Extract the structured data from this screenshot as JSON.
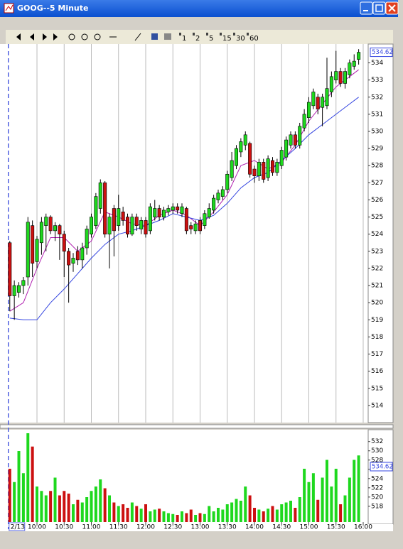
{
  "window": {
    "title": "GOOG--5 Minute",
    "toolbar_periods": [
      "1",
      "2",
      "5",
      "15",
      "30",
      "60"
    ]
  },
  "chart_data": {
    "type": "candlestick",
    "date_label": "2/13",
    "last_price": 534.62,
    "up_color": "#1ed81e",
    "down_color": "#cc1010",
    "x": [
      570,
      575,
      580,
      585,
      590,
      595,
      600,
      605,
      610,
      615,
      620,
      625,
      630,
      635,
      640,
      645,
      650,
      655,
      660,
      665,
      670,
      675,
      680,
      685,
      690,
      695,
      700,
      705,
      710,
      715,
      720,
      725,
      730,
      735,
      740,
      745,
      750,
      755,
      760,
      765,
      770,
      775,
      780,
      785,
      790,
      795,
      800,
      805,
      810,
      815,
      820,
      825,
      830,
      835,
      840,
      845,
      850,
      855,
      860,
      865,
      870,
      875,
      880,
      885,
      890,
      895,
      900,
      905,
      910,
      915,
      920,
      925,
      930,
      935,
      940,
      945,
      950,
      955
    ],
    "open": [
      523.5,
      520.4,
      520.6,
      521.0,
      521.5,
      524.5,
      522.4,
      523.5,
      524.5,
      525.0,
      524.2,
      524.5,
      524.0,
      523.0,
      522.3,
      523.0,
      522.5,
      523.2,
      524.0,
      524.5,
      525.5,
      527.0,
      524.0,
      525.5,
      524.5,
      525.3,
      525.0,
      524.0,
      525.0,
      524.3,
      524.8,
      524.2,
      525.0,
      525.5,
      525.0,
      525.3,
      525.4,
      525.6,
      525.2,
      525.5,
      524.5,
      524.2,
      524.8,
      524.5,
      525.0,
      525.4,
      526.0,
      526.2,
      526.6,
      527.3,
      528.0,
      528.8,
      529.2,
      529.3,
      527.8,
      527.4,
      528.2,
      527.3,
      528.3,
      527.6,
      528.0,
      528.5,
      529.2,
      529.8,
      529.2,
      530.2,
      530.8,
      531.5,
      532.0,
      531.4,
      531.5,
      532.3,
      533.0,
      533.5,
      532.8,
      533.3,
      533.8,
      534.2
    ],
    "high": [
      523.6,
      521.3,
      521.2,
      521.5,
      525.0,
      524.8,
      523.9,
      525.0,
      525.2,
      525.1,
      524.7,
      524.6,
      524.2,
      523.2,
      522.9,
      523.3,
      523.5,
      524.5,
      525.2,
      526.4,
      527.2,
      527.1,
      525.2,
      525.7,
      526.3,
      525.6,
      525.2,
      525.2,
      525.2,
      525.0,
      525.0,
      525.8,
      526.0,
      525.7,
      525.6,
      525.7,
      525.8,
      525.8,
      525.8,
      525.6,
      524.7,
      524.8,
      525.0,
      525.4,
      525.8,
      526.3,
      526.6,
      526.8,
      527.7,
      528.8,
      529.2,
      529.6,
      530.0,
      529.4,
      528.0,
      528.4,
      528.4,
      528.6,
      528.5,
      528.4,
      529.1,
      529.7,
      530.0,
      530.0,
      530.5,
      531.3,
      532.0,
      532.5,
      532.2,
      532.2,
      534.3,
      533.5,
      534.7,
      533.7,
      533.7,
      534.2,
      534.5,
      534.8
    ],
    "low": [
      519.5,
      519.0,
      520.3,
      520.5,
      521.0,
      521.5,
      522.0,
      522.8,
      523.0,
      524.0,
      523.6,
      522.5,
      521.5,
      520.0,
      521.8,
      522.2,
      522.0,
      522.8,
      523.8,
      524.3,
      525.2,
      523.8,
      522.0,
      522.7,
      524.2,
      524.5,
      523.8,
      523.9,
      524.2,
      524.0,
      523.8,
      524.0,
      524.8,
      524.8,
      524.8,
      525.1,
      525.2,
      525.2,
      525.0,
      524.0,
      524.0,
      524.0,
      524.0,
      524.3,
      524.9,
      525.2,
      525.8,
      526.0,
      526.4,
      527.1,
      527.8,
      528.5,
      528.9,
      527.3,
      527.0,
      527.1,
      527.0,
      527.1,
      527.4,
      527.4,
      527.8,
      528.3,
      529.0,
      529.0,
      529.0,
      530.0,
      530.5,
      531.3,
      531.0,
      530.3,
      531.3,
      532.0,
      532.8,
      532.6,
      532.5,
      533.1,
      533.6,
      533.9
    ],
    "close": [
      520.4,
      521.0,
      521.0,
      521.3,
      524.7,
      522.3,
      523.7,
      524.7,
      525.0,
      524.2,
      524.5,
      524.0,
      523.0,
      522.2,
      522.6,
      522.5,
      523.2,
      524.3,
      525.0,
      526.2,
      527.0,
      524.0,
      525.0,
      524.2,
      525.5,
      524.8,
      524.0,
      525.0,
      524.5,
      524.8,
      524.0,
      525.6,
      525.5,
      525.0,
      525.4,
      525.5,
      525.6,
      525.4,
      525.6,
      524.2,
      524.3,
      524.6,
      524.2,
      525.2,
      525.5,
      526.1,
      526.4,
      526.6,
      527.5,
      528.3,
      529.0,
      529.4,
      529.8,
      527.5,
      527.4,
      528.2,
      527.2,
      528.4,
      527.6,
      528.2,
      528.9,
      529.5,
      529.8,
      529.2,
      530.3,
      531.0,
      531.7,
      532.3,
      531.3,
      532.0,
      532.5,
      533.2,
      533.5,
      532.8,
      533.5,
      534.0,
      534.1,
      534.62
    ],
    "volume": [
      60,
      45,
      80,
      55,
      100,
      85,
      40,
      35,
      30,
      35,
      50,
      30,
      35,
      32,
      20,
      25,
      22,
      28,
      35,
      40,
      48,
      38,
      30,
      22,
      18,
      20,
      16,
      22,
      18,
      15,
      20,
      12,
      14,
      15,
      12,
      10,
      9,
      8,
      12,
      10,
      14,
      8,
      10,
      9,
      18,
      12,
      16,
      14,
      20,
      22,
      26,
      24,
      40,
      30,
      16,
      14,
      12,
      15,
      18,
      14,
      20,
      22,
      24,
      16,
      28,
      60,
      45,
      55,
      25,
      50,
      70,
      40,
      60,
      20,
      30,
      50,
      70,
      75
    ],
    "vlim": [
      0,
      100
    ],
    "lines": [
      {
        "color": "#b020b0",
        "x": [
          570,
          585,
          600,
          615,
          630,
          645,
          660,
          675,
          690,
          705,
          720,
          735,
          750,
          765,
          780,
          795,
          810,
          825,
          840,
          855,
          870,
          885,
          900,
          915,
          930,
          945,
          955
        ],
        "values": [
          519.5,
          520.0,
          522.0,
          523.8,
          523.8,
          523.0,
          523.6,
          525.3,
          525.0,
          524.6,
          524.5,
          525.1,
          525.4,
          525.1,
          524.5,
          525.3,
          526.3,
          528.0,
          528.3,
          527.8,
          528.2,
          529.2,
          530.6,
          531.6,
          532.6,
          533.2,
          533.6
        ]
      },
      {
        "color": "#3344e0",
        "x": [
          570,
          585,
          600,
          615,
          630,
          645,
          660,
          675,
          690,
          705,
          720,
          735,
          750,
          765,
          780,
          795,
          810,
          825,
          840,
          855,
          870,
          885,
          900,
          915,
          930,
          945,
          955
        ],
        "values": [
          519.1,
          519.0,
          519.0,
          520.0,
          520.8,
          521.7,
          522.6,
          523.4,
          524.0,
          524.2,
          524.5,
          524.8,
          525.2,
          525.0,
          524.8,
          525.1,
          525.8,
          526.7,
          527.3,
          527.6,
          528.3,
          529.0,
          529.8,
          530.4,
          531.0,
          531.6,
          532.0
        ]
      }
    ],
    "xlim": [
      559.2,
      965.5
    ],
    "xticks": [
      {
        "value": 600,
        "label": "10:00"
      },
      {
        "value": 630,
        "label": "10:30"
      },
      {
        "value": 660,
        "label": "11:00"
      },
      {
        "value": 690,
        "label": "11:30"
      },
      {
        "value": 720,
        "label": "12:00"
      },
      {
        "value": 750,
        "label": "12:30"
      },
      {
        "value": 780,
        "label": "13:00"
      },
      {
        "value": 810,
        "label": "13:30"
      },
      {
        "value": 840,
        "label": "14:00"
      },
      {
        "value": 870,
        "label": "14:30"
      },
      {
        "value": 900,
        "label": "15:00"
      },
      {
        "value": 930,
        "label": "15:30"
      },
      {
        "value": 960,
        "label": "16:00"
      }
    ],
    "ylim": [
      513,
      535.1
    ],
    "yticks": [
      514,
      515,
      516,
      517,
      518,
      519,
      520,
      521,
      522,
      523,
      524,
      525,
      526,
      527,
      528,
      529,
      530,
      531,
      532,
      533,
      534
    ],
    "volume_panel": {
      "ylim": [
        514.6,
        533.8
      ],
      "yticks": [
        518,
        520,
        522,
        524,
        526,
        528,
        530,
        532
      ]
    }
  }
}
